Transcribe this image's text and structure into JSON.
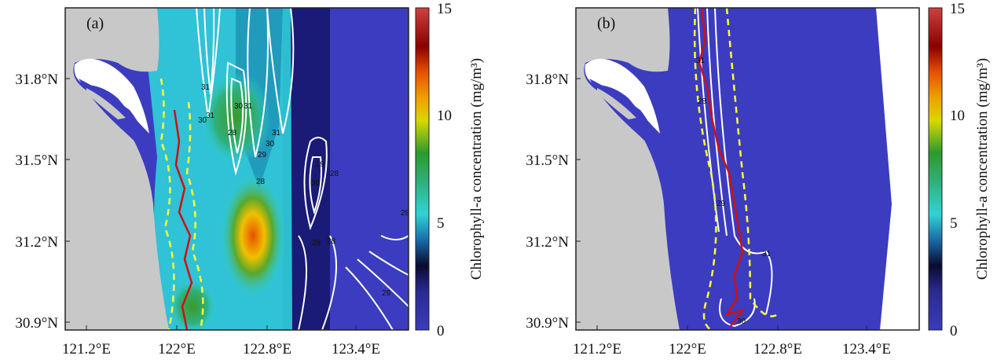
{
  "figure": {
    "panels": [
      {
        "id": "a",
        "label": "(a)",
        "x_ticks": [
          "121.2°E",
          "122°E",
          "122.8°E",
          "123.4°E"
        ],
        "y_ticks": [
          "31.8°N",
          "31.5°N",
          "31.2°N",
          "30.9°N"
        ],
        "contour_labels": [
          "31",
          "30",
          "31",
          "28",
          "30",
          "31",
          "29",
          "30",
          "31",
          "28",
          "30",
          "29",
          "28",
          "28",
          "28",
          "29",
          "28"
        ],
        "colorbar": {
          "label": "Chlorophyll-a concentration (mg/m³)",
          "ticks": [
            "15",
            "10",
            "5",
            "0"
          ]
        }
      },
      {
        "id": "b",
        "label": "(b)",
        "x_ticks": [
          "121.2°E",
          "122°E",
          "122.8°E",
          "123.4°E"
        ],
        "y_ticks": [
          "31.8°N",
          "31.5°N",
          "31.2°N",
          "30.9°N"
        ],
        "contour_labels": [
          "28",
          "31",
          "29",
          "31",
          "30"
        ],
        "colorbar": {
          "label": "Chlorophyll-a concentration (mg/m³)",
          "ticks": [
            "15",
            "10",
            "5",
            "0"
          ]
        }
      }
    ],
    "colors": {
      "land": "#c8c8c8",
      "ocean_low": "#3c3cc0",
      "contour": "#ffffff",
      "dashed": "#ffff33",
      "red_line": "#d01010"
    }
  }
}
